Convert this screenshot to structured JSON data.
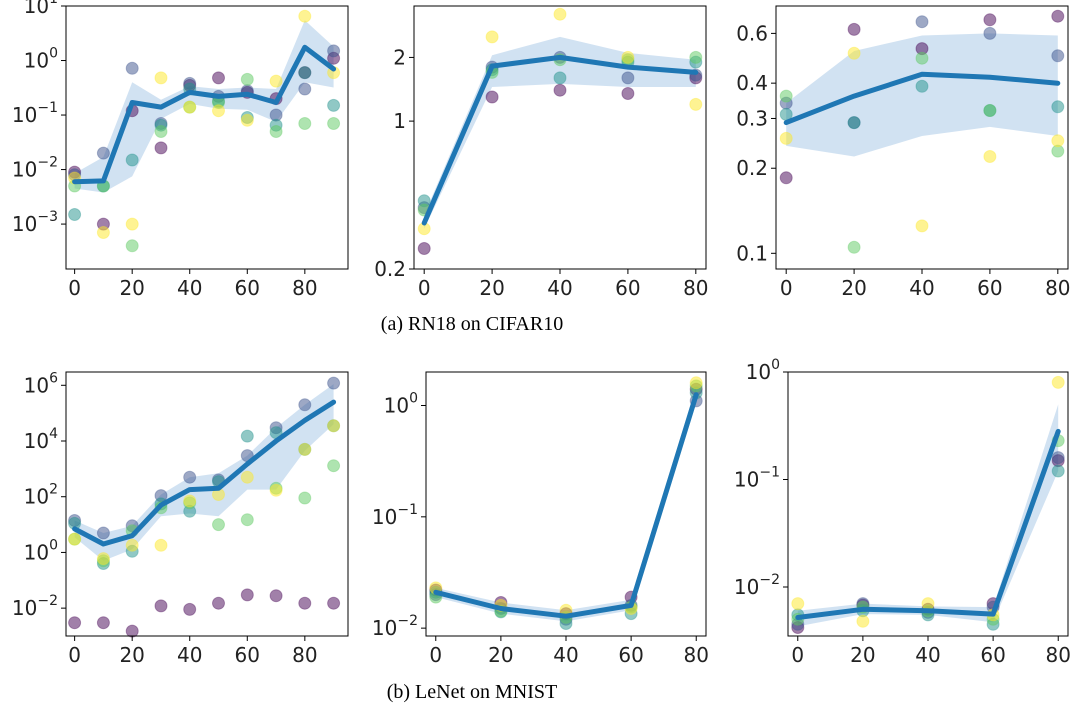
{
  "captions": [
    "(a) RN18 on CIFAR10",
    "(b) LeNet on MNIST"
  ],
  "colors": {
    "mean_line": "#1f77b4",
    "band": "#c6dbef",
    "seed_points": [
      "#440154",
      "#3b528b",
      "#21918c",
      "#5ec962",
      "#fde725"
    ]
  },
  "chart_data": [
    {
      "type": "scatter",
      "panel": "RN18 CIFAR10 left",
      "yscale": "log",
      "xlim": [
        -3,
        95
      ],
      "ylim": [
        0.00015,
        10
      ],
      "xticks": [
        0,
        20,
        40,
        60,
        80
      ],
      "yticks": [
        {
          "v": 10,
          "b": "10",
          "e": "1"
        },
        {
          "v": 1,
          "b": "10",
          "e": "0"
        },
        {
          "v": 0.1,
          "b": "10",
          "e": "−1"
        },
        {
          "v": 0.01,
          "b": "10",
          "e": "−2"
        },
        {
          "v": 0.001,
          "b": "10",
          "e": "−3"
        }
      ],
      "x": [
        0,
        10,
        20,
        30,
        40,
        50,
        60,
        70,
        80,
        90
      ],
      "mean": [
        0.006,
        0.0062,
        0.17,
        0.14,
        0.26,
        0.22,
        0.24,
        0.17,
        1.75,
        0.7
      ],
      "band_low": [
        0.0045,
        0.0038,
        0.0075,
        0.085,
        0.16,
        0.13,
        0.125,
        0.075,
        0.4,
        0.32
      ],
      "band_high": [
        0.0085,
        0.017,
        0.4,
        0.19,
        0.34,
        0.3,
        0.32,
        0.3,
        5.5,
        1.8
      ],
      "series": [
        {
          "values": [
            0.009,
            0.001,
            0.12,
            0.025,
            0.35,
            0.48,
            0.26,
            0.2,
            0.6,
            1.1
          ]
        },
        {
          "values": [
            0.008,
            0.02,
            0.72,
            0.07,
            0.38,
            0.22,
            0.28,
            0.1,
            0.3,
            1.5
          ]
        },
        {
          "values": [
            0.0015,
            0.005,
            0.015,
            0.065,
            0.3,
            0.18,
            0.09,
            0.065,
            0.6,
            0.15
          ]
        },
        {
          "values": [
            0.005,
            0.005,
            0.0004,
            0.05,
            0.14,
            0.17,
            0.45,
            0.05,
            0.07,
            0.07
          ]
        },
        {
          "values": [
            0.007,
            0.0007,
            0.001,
            0.48,
            0.14,
            0.12,
            0.08,
            0.42,
            6.5,
            0.6
          ]
        }
      ]
    },
    {
      "type": "scatter",
      "panel": "RN18 CIFAR10 middle",
      "yscale": "log",
      "xlim": [
        -3,
        83
      ],
      "ylim": [
        0.2,
        3.5
      ],
      "xticks": [
        0,
        20,
        40,
        60,
        80
      ],
      "yticks": [
        {
          "v": 2,
          "b": "2"
        },
        {
          "v": 1,
          "b": "1"
        },
        {
          "v": 0.2,
          "b": "0.2"
        }
      ],
      "x": [
        0,
        20,
        40,
        60,
        80
      ],
      "mean": [
        0.33,
        1.82,
        2.0,
        1.8,
        1.7
      ],
      "band_low": [
        0.31,
        1.45,
        1.5,
        1.45,
        1.45
      ],
      "band_high": [
        0.36,
        2.05,
        2.5,
        2.1,
        1.95
      ],
      "series": [
        {
          "values": [
            0.25,
            1.3,
            1.4,
            1.35,
            1.6
          ]
        },
        {
          "values": [
            0.39,
            1.8,
            2.0,
            1.6,
            1.65
          ]
        },
        {
          "values": [
            0.42,
            1.75,
            1.6,
            1.9,
            1.9
          ]
        },
        {
          "values": [
            0.38,
            1.7,
            1.95,
            1.95,
            2.0
          ]
        },
        {
          "values": [
            0.31,
            2.5,
            3.2,
            2.0,
            1.2
          ]
        }
      ]
    },
    {
      "type": "scatter",
      "panel": "RN18 CIFAR10 right",
      "yscale": "log",
      "xlim": [
        -3,
        83
      ],
      "ylim": [
        0.088,
        0.75
      ],
      "xticks": [
        0,
        20,
        40,
        60,
        80
      ],
      "yticks": [
        {
          "v": 0.6,
          "b": "0.6"
        },
        {
          "v": 0.4,
          "b": "0.4"
        },
        {
          "v": 0.3,
          "b": "0.3"
        },
        {
          "v": 0.2,
          "b": "0.2"
        },
        {
          "v": 0.1,
          "b": "0.1"
        }
      ],
      "x": [
        0,
        20,
        40,
        60,
        80
      ],
      "mean": [
        0.29,
        0.36,
        0.43,
        0.42,
        0.4
      ],
      "band_low": [
        0.24,
        0.22,
        0.26,
        0.28,
        0.26
      ],
      "band_high": [
        0.34,
        0.52,
        0.59,
        0.6,
        0.59
      ],
      "series": [
        {
          "values": [
            0.185,
            0.62,
            0.53,
            0.67,
            0.69
          ]
        },
        {
          "values": [
            0.34,
            0.29,
            0.66,
            0.6,
            0.5
          ]
        },
        {
          "values": [
            0.31,
            0.29,
            0.39,
            0.32,
            0.33
          ]
        },
        {
          "values": [
            0.36,
            0.105,
            0.49,
            0.32,
            0.23
          ]
        },
        {
          "values": [
            0.255,
            0.51,
            0.125,
            0.22,
            0.25
          ]
        }
      ]
    },
    {
      "type": "scatter",
      "panel": "LeNet MNIST left",
      "yscale": "log",
      "xlim": [
        -3,
        95
      ],
      "ylim": [
        0.001,
        3000000
      ],
      "xticks": [
        0,
        20,
        40,
        60,
        80
      ],
      "yticks": [
        {
          "v": 1000000,
          "b": "10",
          "e": "6"
        },
        {
          "v": 10000,
          "b": "10",
          "e": "4"
        },
        {
          "v": 100,
          "b": "10",
          "e": "2"
        },
        {
          "v": 1,
          "b": "10",
          "e": "0"
        },
        {
          "v": 0.01,
          "b": "10",
          "e": "−2"
        }
      ],
      "x": [
        0,
        10,
        20,
        30,
        40,
        50,
        60,
        70,
        80,
        90
      ],
      "mean": [
        7,
        2,
        4,
        50,
        180,
        200,
        1500,
        10000,
        55000,
        250000
      ],
      "band_low": [
        3.5,
        0.5,
        1.3,
        20,
        25,
        20,
        180,
        180,
        4500,
        40000
      ],
      "band_high": [
        14,
        5,
        9,
        120,
        500,
        700,
        3000,
        30000,
        200000,
        1100000
      ],
      "series": [
        {
          "values": [
            0.003,
            0.003,
            0.0015,
            0.012,
            0.009,
            0.015,
            0.03,
            0.028,
            0.015,
            0.015
          ]
        },
        {
          "values": [
            14,
            5,
            9,
            110,
            500,
            400,
            3000,
            30000,
            200000,
            1200000
          ]
        },
        {
          "values": [
            11,
            0.4,
            1.1,
            55,
            30,
            350,
            15000,
            20000,
            5000,
            35000
          ]
        },
        {
          "values": [
            3,
            0.5,
            6,
            40,
            60,
            10,
            15,
            200,
            90,
            1300
          ]
        },
        {
          "values": [
            3,
            0.6,
            1.8,
            1.8,
            70,
            120,
            500,
            170,
            5000,
            35000
          ]
        }
      ]
    },
    {
      "type": "scatter",
      "panel": "LeNet MNIST middle",
      "yscale": "log",
      "xlim": [
        -3,
        83
      ],
      "ylim": [
        0.0085,
        2.0
      ],
      "xticks": [
        0,
        20,
        40,
        60,
        80
      ],
      "yticks": [
        {
          "v": 1,
          "b": "10",
          "e": "0"
        },
        {
          "v": 0.1,
          "b": "10",
          "e": "−1"
        },
        {
          "v": 0.01,
          "b": "10",
          "e": "−2"
        }
      ],
      "x": [
        0,
        20,
        40,
        60,
        80
      ],
      "mean": [
        0.021,
        0.015,
        0.0128,
        0.016,
        1.25
      ],
      "band_low": [
        0.019,
        0.0135,
        0.0115,
        0.0145,
        1.05
      ],
      "band_high": [
        0.023,
        0.017,
        0.0145,
        0.018,
        1.5
      ],
      "series": [
        {
          "values": [
            0.022,
            0.017,
            0.0135,
            0.019,
            1.4
          ]
        },
        {
          "values": [
            0.02,
            0.015,
            0.012,
            0.016,
            1.1
          ]
        },
        {
          "values": [
            0.021,
            0.014,
            0.011,
            0.0135,
            1.3
          ]
        },
        {
          "values": [
            0.019,
            0.0142,
            0.0125,
            0.0155,
            1.5
          ]
        },
        {
          "values": [
            0.023,
            0.016,
            0.0145,
            0.015,
            1.6
          ]
        }
      ]
    },
    {
      "type": "scatter",
      "panel": "LeNet MNIST right",
      "yscale": "log",
      "xlim": [
        -3,
        83
      ],
      "ylim": [
        0.0035,
        1.0
      ],
      "xticks": [
        0,
        20,
        40,
        60,
        80
      ],
      "yticks": [
        {
          "v": 1,
          "b": "10",
          "e": "0"
        },
        {
          "v": 0.1,
          "b": "10",
          "e": "−1"
        },
        {
          "v": 0.01,
          "b": "10",
          "e": "−2"
        }
      ],
      "x": [
        0,
        20,
        40,
        60,
        80
      ],
      "mean": [
        0.0052,
        0.0062,
        0.006,
        0.0056,
        0.28
      ],
      "band_low": [
        0.0043,
        0.0056,
        0.0055,
        0.0047,
        0.12
      ],
      "band_high": [
        0.006,
        0.007,
        0.0066,
        0.0065,
        0.5
      ],
      "series": [
        {
          "values": [
            0.0042,
            0.0068,
            0.0062,
            0.007,
            0.15
          ]
        },
        {
          "values": [
            0.0045,
            0.007,
            0.0058,
            0.0065,
            0.16
          ]
        },
        {
          "values": [
            0.0055,
            0.006,
            0.0055,
            0.0045,
            0.12
          ]
        },
        {
          "values": [
            0.005,
            0.0065,
            0.006,
            0.005,
            0.23
          ]
        },
        {
          "values": [
            0.007,
            0.0048,
            0.007,
            0.0055,
            0.8
          ]
        }
      ]
    }
  ]
}
